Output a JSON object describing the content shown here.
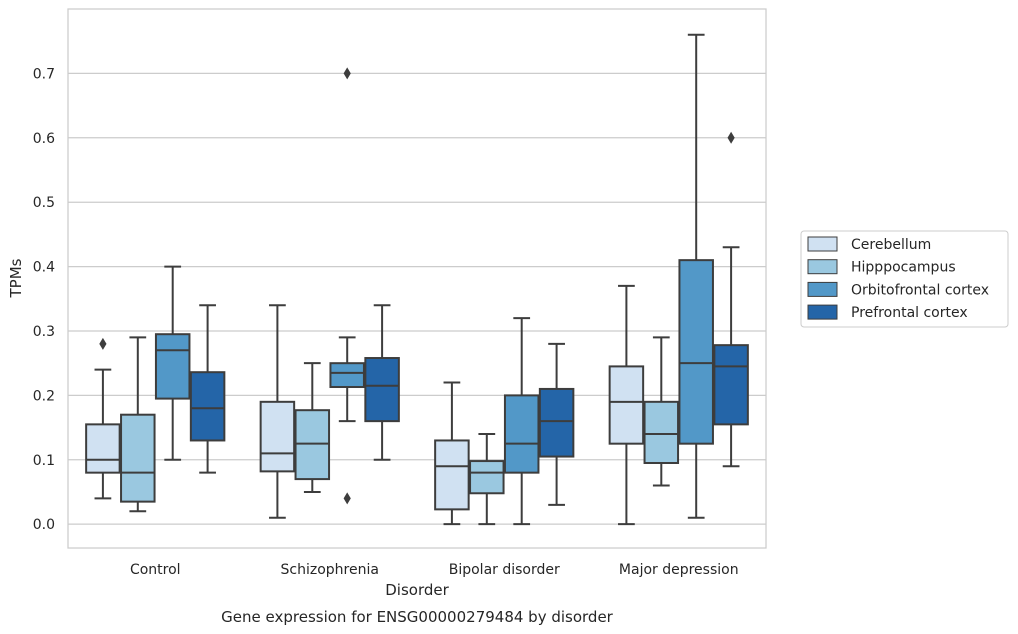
{
  "chart_data": {
    "type": "box",
    "title": "",
    "caption": "Gene expression for ENSG00000279484 by disorder",
    "xlabel": "Disorder",
    "ylabel": "TPMs",
    "ylim": [
      -0.037,
      0.8
    ],
    "yticks": [
      0.0,
      0.1,
      0.2,
      0.3,
      0.4,
      0.5,
      0.6,
      0.7
    ],
    "ytick_labels": [
      "0.0",
      "0.1",
      "0.2",
      "0.3",
      "0.4",
      "0.5",
      "0.6",
      "0.7"
    ],
    "grid": "horizontal",
    "legend_position": "right",
    "categories": [
      "Control",
      "Schizophrenia",
      "Bipolar disorder",
      "Major depression"
    ],
    "series": [
      {
        "name": "Cerebellum",
        "color": "#d0e1f2",
        "boxes": [
          {
            "whislo": 0.04,
            "q1": 0.08,
            "median": 0.1,
            "q3": 0.155,
            "whishi": 0.24,
            "fliers": [
              0.28
            ]
          },
          {
            "whislo": 0.01,
            "q1": 0.082,
            "median": 0.11,
            "q3": 0.19,
            "whishi": 0.34,
            "fliers": []
          },
          {
            "whislo": 0.0,
            "q1": 0.023,
            "median": 0.09,
            "q3": 0.13,
            "whishi": 0.22,
            "fliers": []
          },
          {
            "whislo": 0.0,
            "q1": 0.125,
            "median": 0.19,
            "q3": 0.245,
            "whishi": 0.37,
            "fliers": []
          }
        ]
      },
      {
        "name": "Hipppocampus",
        "color": "#9ac8e0",
        "boxes": [
          {
            "whislo": 0.02,
            "q1": 0.035,
            "median": 0.08,
            "q3": 0.17,
            "whishi": 0.29,
            "fliers": []
          },
          {
            "whislo": 0.05,
            "q1": 0.07,
            "median": 0.125,
            "q3": 0.177,
            "whishi": 0.25,
            "fliers": []
          },
          {
            "whislo": 0.0,
            "q1": 0.048,
            "median": 0.08,
            "q3": 0.098,
            "whishi": 0.14,
            "fliers": []
          },
          {
            "whislo": 0.06,
            "q1": 0.095,
            "median": 0.14,
            "q3": 0.19,
            "whishi": 0.29,
            "fliers": []
          }
        ]
      },
      {
        "name": "Orbitofrontal cortex",
        "color": "#5298c8",
        "boxes": [
          {
            "whislo": 0.1,
            "q1": 0.195,
            "median": 0.27,
            "q3": 0.295,
            "whishi": 0.4,
            "fliers": []
          },
          {
            "whislo": 0.16,
            "q1": 0.213,
            "median": 0.235,
            "q3": 0.25,
            "whishi": 0.29,
            "fliers": [
              0.04,
              0.7
            ]
          },
          {
            "whislo": 0.0,
            "q1": 0.08,
            "median": 0.125,
            "q3": 0.2,
            "whishi": 0.32,
            "fliers": []
          },
          {
            "whislo": 0.01,
            "q1": 0.125,
            "median": 0.25,
            "q3": 0.41,
            "whishi": 0.76,
            "fliers": []
          }
        ]
      },
      {
        "name": "Prefrontal cortex",
        "color": "#2465a8",
        "boxes": [
          {
            "whislo": 0.08,
            "q1": 0.13,
            "median": 0.18,
            "q3": 0.236,
            "whishi": 0.34,
            "fliers": []
          },
          {
            "whislo": 0.1,
            "q1": 0.16,
            "median": 0.215,
            "q3": 0.258,
            "whishi": 0.34,
            "fliers": []
          },
          {
            "whislo": 0.03,
            "q1": 0.105,
            "median": 0.16,
            "q3": 0.21,
            "whishi": 0.28,
            "fliers": []
          },
          {
            "whislo": 0.09,
            "q1": 0.155,
            "median": 0.245,
            "q3": 0.278,
            "whishi": 0.43,
            "fliers": [
              0.6
            ]
          }
        ]
      }
    ]
  }
}
